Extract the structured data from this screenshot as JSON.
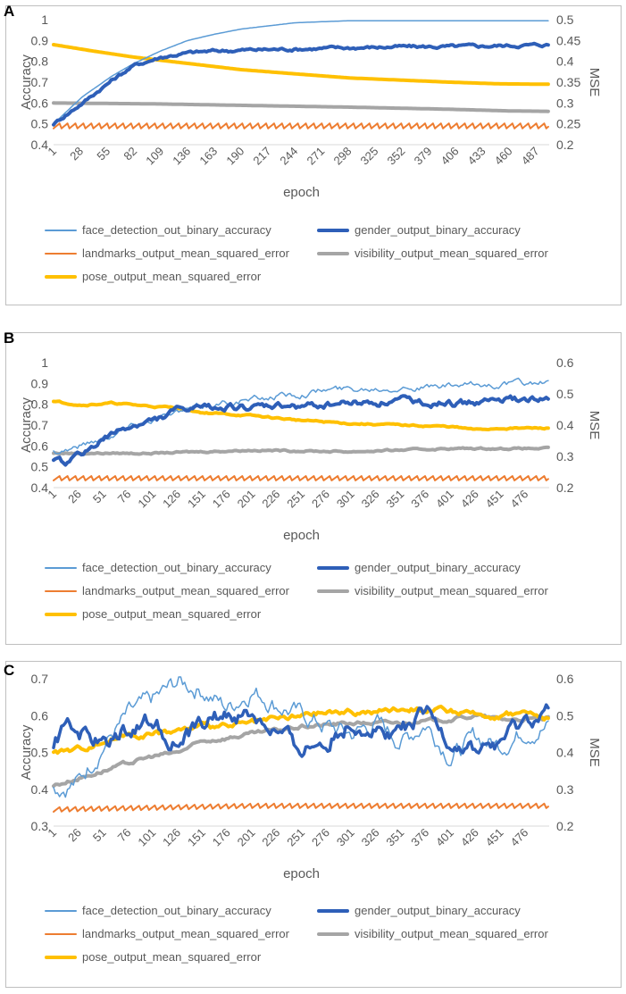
{
  "chart_data": [
    {
      "panel": "A",
      "type": "line",
      "xlabel": "epoch",
      "ylabel": "Accuracy",
      "y2label": "MSE",
      "ylim": [
        0.4,
        1.0
      ],
      "y2lim": [
        0.2,
        0.5
      ],
      "y_ticks": [
        "0.4",
        "0.5",
        "0.6",
        "0.7",
        "0.8",
        "0.9",
        "1"
      ],
      "y2_ticks": [
        "0.2",
        "0.25",
        "0.3",
        "0.35",
        "0.4",
        "0.45",
        "0.5"
      ],
      "x_ticks": [
        "1",
        "28",
        "55",
        "82",
        "109",
        "136",
        "163",
        "190",
        "217",
        "244",
        "271",
        "298",
        "325",
        "352",
        "379",
        "406",
        "433",
        "460",
        "487"
      ],
      "x_range": [
        1,
        500
      ],
      "series": [
        {
          "name": "face_detection_out_binary_accuracy",
          "axis": "left",
          "color": "#5B9BD5",
          "width": 1.5,
          "noise": 0.0,
          "points": [
            [
              1,
              0.5
            ],
            [
              30,
              0.63
            ],
            [
              60,
              0.73
            ],
            [
              82,
              0.79
            ],
            [
              109,
              0.85
            ],
            [
              136,
              0.9
            ],
            [
              163,
              0.93
            ],
            [
              190,
              0.955
            ],
            [
              217,
              0.97
            ],
            [
              244,
              0.985
            ],
            [
              271,
              0.99
            ],
            [
              300,
              0.995
            ],
            [
              350,
              0.995
            ],
            [
              400,
              0.995
            ],
            [
              450,
              0.995
            ],
            [
              500,
              0.995
            ]
          ]
        },
        {
          "name": "gender_output_binary_accuracy",
          "axis": "left",
          "color": "#2E5FB8",
          "width": 4,
          "noise": 0.006,
          "points": [
            [
              1,
              0.5
            ],
            [
              30,
              0.6
            ],
            [
              60,
              0.71
            ],
            [
              82,
              0.78
            ],
            [
              109,
              0.82
            ],
            [
              136,
              0.84
            ],
            [
              163,
              0.85
            ],
            [
              200,
              0.855
            ],
            [
              250,
              0.86
            ],
            [
              300,
              0.865
            ],
            [
              350,
              0.87
            ],
            [
              400,
              0.87
            ],
            [
              450,
              0.875
            ],
            [
              500,
              0.88
            ]
          ]
        },
        {
          "name": "landmarks_output_mean_squared_error",
          "axis": "right",
          "color": "#ED7D31",
          "width": 2,
          "noise": 0.0,
          "sawtooth": 0.012,
          "points": [
            [
              1,
              0.245
            ],
            [
              500,
              0.245
            ]
          ]
        },
        {
          "name": "visibility_output_mean_squared_error",
          "axis": "right",
          "color": "#A5A5A5",
          "width": 4,
          "noise": 0.0,
          "points": [
            [
              1,
              0.3
            ],
            [
              100,
              0.298
            ],
            [
              200,
              0.294
            ],
            [
              300,
              0.29
            ],
            [
              400,
              0.285
            ],
            [
              460,
              0.281
            ],
            [
              500,
              0.28
            ]
          ]
        },
        {
          "name": "pose_output_mean_squared_error",
          "axis": "right",
          "color": "#FFC000",
          "width": 4,
          "noise": 0.0,
          "points": [
            [
              1,
              0.44
            ],
            [
              40,
              0.425
            ],
            [
              82,
              0.41
            ],
            [
              136,
              0.395
            ],
            [
              190,
              0.38
            ],
            [
              244,
              0.37
            ],
            [
              300,
              0.36
            ],
            [
              350,
              0.355
            ],
            [
              400,
              0.35
            ],
            [
              450,
              0.346
            ],
            [
              500,
              0.345
            ]
          ]
        }
      ]
    },
    {
      "panel": "B",
      "type": "line",
      "xlabel": "epoch",
      "ylabel": "Accuracy",
      "y2label": "MSE",
      "ylim": [
        0.4,
        1.0
      ],
      "y2lim": [
        0.2,
        0.6
      ],
      "y_ticks": [
        "0.4",
        "0.5",
        "0.6",
        "0.7",
        "0.8",
        "0.9",
        "1"
      ],
      "y2_ticks": [
        "0.2",
        "0.3",
        "0.4",
        "0.5",
        "0.6"
      ],
      "x_ticks": [
        "1",
        "26",
        "51",
        "76",
        "101",
        "126",
        "151",
        "176",
        "201",
        "226",
        "251",
        "276",
        "301",
        "326",
        "351",
        "376",
        "401",
        "426",
        "451",
        "476"
      ],
      "x_range": [
        1,
        500
      ],
      "series": [
        {
          "name": "face_detection_out_binary_accuracy",
          "axis": "left",
          "color": "#5B9BD5",
          "width": 1.5,
          "noise": 0.012,
          "points": [
            [
              1,
              0.57
            ],
            [
              26,
              0.6
            ],
            [
              51,
              0.64
            ],
            [
              76,
              0.69
            ],
            [
              101,
              0.73
            ],
            [
              126,
              0.76
            ],
            [
              151,
              0.79
            ],
            [
              176,
              0.81
            ],
            [
              201,
              0.82
            ],
            [
              226,
              0.84
            ],
            [
              251,
              0.85
            ],
            [
              276,
              0.87
            ],
            [
              301,
              0.875
            ],
            [
              326,
              0.88
            ],
            [
              351,
              0.885
            ],
            [
              376,
              0.88
            ],
            [
              401,
              0.885
            ],
            [
              426,
              0.89
            ],
            [
              451,
              0.895
            ],
            [
              476,
              0.9
            ],
            [
              500,
              0.905
            ]
          ]
        },
        {
          "name": "gender_output_binary_accuracy",
          "axis": "left",
          "color": "#2E5FB8",
          "width": 4,
          "noise": 0.012,
          "points": [
            [
              1,
              0.52
            ],
            [
              15,
              0.52
            ],
            [
              26,
              0.55
            ],
            [
              51,
              0.63
            ],
            [
              76,
              0.69
            ],
            [
              101,
              0.72
            ],
            [
              126,
              0.77
            ],
            [
              151,
              0.78
            ],
            [
              176,
              0.79
            ],
            [
              201,
              0.78
            ],
            [
              226,
              0.79
            ],
            [
              251,
              0.79
            ],
            [
              276,
              0.8
            ],
            [
              301,
              0.81
            ],
            [
              326,
              0.81
            ],
            [
              351,
              0.82
            ],
            [
              376,
              0.81
            ],
            [
              401,
              0.8
            ],
            [
              426,
              0.81
            ],
            [
              451,
              0.82
            ],
            [
              476,
              0.82
            ],
            [
              500,
              0.82
            ]
          ]
        },
        {
          "name": "landmarks_output_mean_squared_error",
          "axis": "right",
          "color": "#ED7D31",
          "width": 2,
          "noise": 0.0,
          "sawtooth": 0.014,
          "points": [
            [
              1,
              0.23
            ],
            [
              500,
              0.23
            ]
          ]
        },
        {
          "name": "visibility_output_mean_squared_error",
          "axis": "right",
          "color": "#A5A5A5",
          "width": 4,
          "noise": 0.002,
          "points": [
            [
              1,
              0.31
            ],
            [
              100,
              0.31
            ],
            [
              200,
              0.32
            ],
            [
              300,
              0.315
            ],
            [
              400,
              0.325
            ],
            [
              500,
              0.325
            ]
          ]
        },
        {
          "name": "pose_output_mean_squared_error",
          "axis": "right",
          "color": "#FFC000",
          "width": 4,
          "noise": 0.002,
          "points": [
            [
              1,
              0.475
            ],
            [
              30,
              0.465
            ],
            [
              60,
              0.47
            ],
            [
              101,
              0.46
            ],
            [
              126,
              0.455
            ],
            [
              151,
              0.44
            ],
            [
              201,
              0.43
            ],
            [
              251,
              0.415
            ],
            [
              301,
              0.405
            ],
            [
              351,
              0.4
            ],
            [
              401,
              0.395
            ],
            [
              426,
              0.385
            ],
            [
              451,
              0.39
            ],
            [
              500,
              0.39
            ]
          ]
        }
      ]
    },
    {
      "panel": "C",
      "type": "line",
      "xlabel": "epoch",
      "ylabel": "Accuracy",
      "y2label": "MSE",
      "ylim": [
        0.3,
        0.7
      ],
      "y2lim": [
        0.2,
        0.6
      ],
      "y_ticks": [
        "0.3",
        "0.4",
        "0.5",
        "0.6",
        "0.7"
      ],
      "y2_ticks": [
        "0.2",
        "0.3",
        "0.4",
        "0.5",
        "0.6"
      ],
      "x_ticks": [
        "1",
        "26",
        "51",
        "76",
        "101",
        "126",
        "151",
        "176",
        "201",
        "226",
        "251",
        "276",
        "301",
        "326",
        "351",
        "376",
        "401",
        "426",
        "451",
        "476"
      ],
      "x_range": [
        1,
        500
      ],
      "series": [
        {
          "name": "face_detection_out_binary_accuracy",
          "axis": "left",
          "color": "#5B9BD5",
          "width": 1.5,
          "noise": 0.02,
          "points": [
            [
              1,
              0.4
            ],
            [
              26,
              0.42
            ],
            [
              51,
              0.52
            ],
            [
              76,
              0.6
            ],
            [
              101,
              0.64
            ],
            [
              126,
              0.69
            ],
            [
              151,
              0.67
            ],
            [
              176,
              0.62
            ],
            [
              201,
              0.67
            ],
            [
              226,
              0.63
            ],
            [
              251,
              0.6
            ],
            [
              276,
              0.57
            ],
            [
              301,
              0.55
            ],
            [
              326,
              0.58
            ],
            [
              351,
              0.53
            ],
            [
              376,
              0.58
            ],
            [
              401,
              0.49
            ],
            [
              426,
              0.54
            ],
            [
              451,
              0.52
            ],
            [
              476,
              0.56
            ],
            [
              500,
              0.57
            ]
          ]
        },
        {
          "name": "gender_output_binary_accuracy",
          "axis": "left",
          "color": "#2E5FB8",
          "width": 3.5,
          "noise": 0.018,
          "points": [
            [
              1,
              0.5
            ],
            [
              15,
              0.59
            ],
            [
              26,
              0.56
            ],
            [
              51,
              0.52
            ],
            [
              76,
              0.57
            ],
            [
              101,
              0.59
            ],
            [
              126,
              0.52
            ],
            [
              151,
              0.58
            ],
            [
              176,
              0.6
            ],
            [
              201,
              0.6
            ],
            [
              226,
              0.55
            ],
            [
              251,
              0.51
            ],
            [
              276,
              0.53
            ],
            [
              301,
              0.58
            ],
            [
              326,
              0.56
            ],
            [
              351,
              0.56
            ],
            [
              376,
              0.6
            ],
            [
              401,
              0.53
            ],
            [
              426,
              0.5
            ],
            [
              451,
              0.53
            ],
            [
              476,
              0.58
            ],
            [
              500,
              0.61
            ]
          ]
        },
        {
          "name": "landmarks_output_mean_squared_error",
          "axis": "right",
          "color": "#ED7D31",
          "width": 2,
          "noise": 0.0,
          "sawtooth": 0.012,
          "points": [
            [
              1,
              0.245
            ],
            [
              200,
              0.255
            ],
            [
              500,
              0.255
            ]
          ]
        },
        {
          "name": "visibility_output_mean_squared_error",
          "axis": "right",
          "color": "#A5A5A5",
          "width": 4,
          "noise": 0.004,
          "points": [
            [
              1,
              0.31
            ],
            [
              26,
              0.33
            ],
            [
              51,
              0.35
            ],
            [
              76,
              0.37
            ],
            [
              101,
              0.39
            ],
            [
              126,
              0.4
            ],
            [
              151,
              0.43
            ],
            [
              176,
              0.44
            ],
            [
              201,
              0.45
            ],
            [
              251,
              0.47
            ],
            [
              301,
              0.48
            ],
            [
              351,
              0.48
            ],
            [
              401,
              0.49
            ],
            [
              426,
              0.5
            ],
            [
              451,
              0.49
            ],
            [
              476,
              0.49
            ],
            [
              500,
              0.49
            ]
          ]
        },
        {
          "name": "pose_output_mean_squared_error",
          "axis": "right",
          "color": "#FFC000",
          "width": 4,
          "noise": 0.006,
          "points": [
            [
              1,
              0.4
            ],
            [
              26,
              0.41
            ],
            [
              51,
              0.43
            ],
            [
              76,
              0.45
            ],
            [
              101,
              0.45
            ],
            [
              126,
              0.46
            ],
            [
              151,
              0.47
            ],
            [
              176,
              0.47
            ],
            [
              201,
              0.48
            ],
            [
              226,
              0.49
            ],
            [
              251,
              0.5
            ],
            [
              276,
              0.51
            ],
            [
              301,
              0.51
            ],
            [
              326,
              0.51
            ],
            [
              351,
              0.52
            ],
            [
              376,
              0.52
            ],
            [
              401,
              0.51
            ],
            [
              426,
              0.5
            ],
            [
              451,
              0.5
            ],
            [
              476,
              0.51
            ],
            [
              500,
              0.49
            ]
          ]
        }
      ]
    }
  ],
  "legend": {
    "items": [
      {
        "label": "face_detection_out_binary_accuracy",
        "color": "#5B9BD5"
      },
      {
        "label": "gender_output_binary_accuracy",
        "color": "#2E5FB8"
      },
      {
        "label": "landmarks_output_mean_squared_error",
        "color": "#ED7D31"
      },
      {
        "label": "visibility_output_mean_squared_error",
        "color": "#A5A5A5"
      },
      {
        "label": "pose_output_mean_squared_error",
        "color": "#FFC000"
      }
    ]
  }
}
